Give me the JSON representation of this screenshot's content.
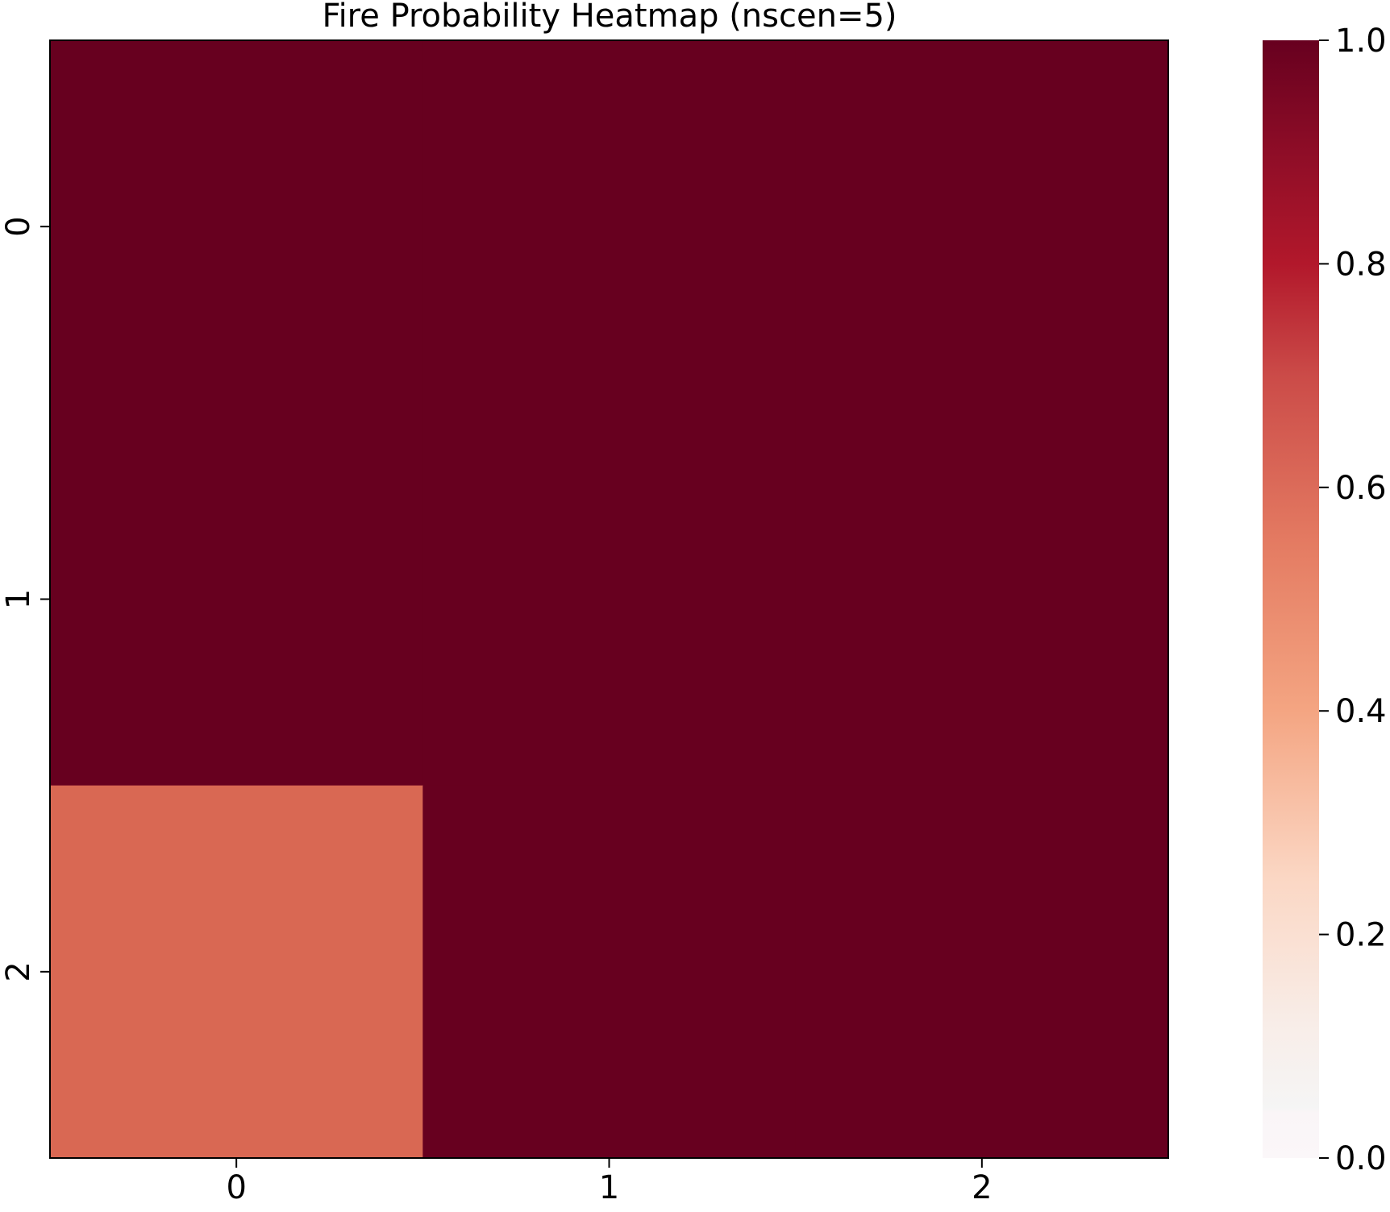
{
  "chart_data": {
    "type": "heatmap",
    "title": "Fire Probability Heatmap (nscen=5)",
    "xlabel": "",
    "ylabel": "",
    "x_categories": [
      "0",
      "1",
      "2"
    ],
    "y_categories": [
      "0",
      "1",
      "2"
    ],
    "values": [
      [
        1.0,
        1.0,
        1.0
      ],
      [
        1.0,
        1.0,
        1.0
      ],
      [
        0.6,
        1.0,
        1.0
      ]
    ],
    "colorbar": {
      "range": [
        0.0,
        1.0
      ],
      "ticks": [
        0.0,
        0.2,
        0.4,
        0.6,
        0.8,
        1.0
      ],
      "tick_labels": [
        "0.0",
        "0.2",
        "0.4",
        "0.6",
        "0.8",
        "1.0"
      ],
      "colormap": "RdBu_r (upper half)"
    },
    "grid": false,
    "colors": {
      "low": "#fbf8f9",
      "mid_low": "#f7f7f7",
      "mid": "#f4a582",
      "mid_high": "#d6604d",
      "high": "#b2182b",
      "max": "#67001f"
    }
  }
}
